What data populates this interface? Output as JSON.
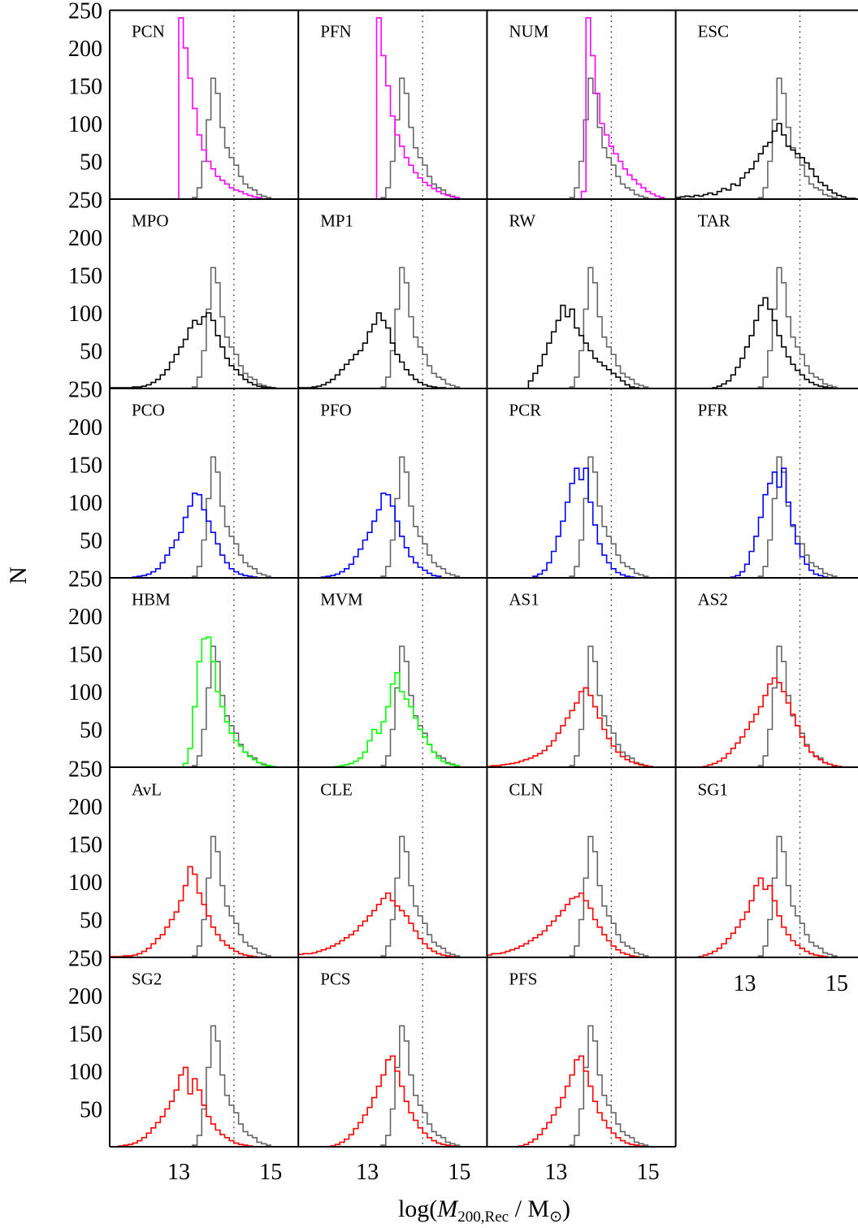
{
  "figure": {
    "ylabel": "N",
    "xlabel_parts": [
      "log(",
      "M",
      "200,Rec",
      " / M",
      "⊙",
      ")"
    ]
  },
  "colors": {
    "reference": "#666666",
    "pcn_group": "#ff00ff",
    "black_group": "#000000",
    "blue_group": "#0000ff",
    "green_group": "#00ff00",
    "red_group": "#ff0000",
    "frame": "#000000"
  },
  "chart_data": {
    "type": "histogram-grid",
    "ylim": [
      0,
      250
    ],
    "xlim": [
      11.5,
      15.6
    ],
    "yticks": [
      50,
      100,
      150,
      200,
      250
    ],
    "yticklabels": [
      "50",
      "100",
      "150",
      "200",
      "250"
    ],
    "xticks": [
      13,
      15
    ],
    "xticklabels": [
      "13",
      "15"
    ],
    "true_mass_marker": 14.2,
    "bin_width": 0.1,
    "reference": {
      "bin_start": 13.3,
      "values": [
        2,
        15,
        50,
        105,
        160,
        140,
        95,
        68,
        55,
        45,
        30,
        20,
        15,
        12,
        6,
        4,
        2
      ]
    },
    "panels": [
      {
        "label": "PCN",
        "color": "pcn_group",
        "bin_start": 13.0,
        "values": [
          240,
          200,
          160,
          120,
          85,
          65,
          50,
          40,
          30,
          25,
          20,
          15,
          12,
          10,
          7,
          5,
          3,
          2
        ]
      },
      {
        "label": "PFN",
        "color": "pcn_group",
        "bin_start": 13.2,
        "values": [
          240,
          190,
          150,
          110,
          85,
          70,
          55,
          45,
          35,
          28,
          22,
          18,
          14,
          10,
          7,
          5,
          3,
          2
        ]
      },
      {
        "label": "NUM",
        "color": "pcn_group",
        "bin_start": 13.55,
        "values": [
          10,
          240,
          190,
          140,
          100,
          85,
          70,
          60,
          50,
          40,
          32,
          26,
          20,
          15,
          10,
          7,
          4,
          2
        ]
      },
      {
        "label": "ESC",
        "color": "black_group",
        "bin_start": 11.5,
        "values": [
          2,
          3,
          4,
          3,
          5,
          4,
          6,
          8,
          6,
          10,
          14,
          12,
          20,
          18,
          28,
          35,
          40,
          50,
          60,
          70,
          75,
          90,
          100,
          85,
          70,
          65,
          60,
          55,
          48,
          40,
          30,
          22,
          18,
          12,
          8,
          5,
          3,
          1,
          1
        ]
      },
      {
        "label": "MPO",
        "color": "black_group",
        "bin_start": 11.5,
        "values": [
          1,
          1,
          1,
          1,
          1,
          2,
          2,
          3,
          5,
          8,
          12,
          18,
          25,
          35,
          45,
          55,
          65,
          80,
          90,
          85,
          95,
          100,
          90,
          70,
          55,
          40,
          30,
          25,
          18,
          12,
          8,
          5,
          3,
          2,
          1,
          1
        ]
      },
      {
        "label": "MP1",
        "color": "black_group",
        "bin_start": 11.5,
        "values": [
          1,
          1,
          1,
          2,
          3,
          5,
          8,
          12,
          18,
          25,
          32,
          38,
          45,
          50,
          60,
          75,
          85,
          100,
          90,
          80,
          60,
          45,
          35,
          25,
          18,
          12,
          8,
          5,
          3,
          2,
          1,
          1
        ]
      },
      {
        "label": "RW",
        "color": "black_group",
        "bin_start": 12.4,
        "values": [
          10,
          20,
          30,
          45,
          60,
          75,
          90,
          110,
          95,
          105,
          80,
          70,
          60,
          50,
          40,
          35,
          30,
          25,
          20,
          15,
          10,
          5,
          2,
          1
        ]
      },
      {
        "label": "TAR",
        "color": "black_group",
        "bin_start": 12.3,
        "values": [
          1,
          3,
          6,
          10,
          18,
          28,
          40,
          55,
          70,
          90,
          110,
          120,
          105,
          90,
          70,
          55,
          42,
          32,
          24,
          18,
          12,
          8,
          5,
          3,
          2,
          1
        ]
      },
      {
        "label": "PCO",
        "color": "blue_group",
        "bin_start": 12.0,
        "values": [
          1,
          2,
          3,
          5,
          8,
          12,
          20,
          30,
          40,
          50,
          60,
          80,
          95,
          112,
          110,
          90,
          75,
          60,
          45,
          30,
          20,
          12,
          8,
          5,
          3,
          2,
          1
        ]
      },
      {
        "label": "PFO",
        "color": "blue_group",
        "bin_start": 12.0,
        "values": [
          1,
          2,
          3,
          5,
          8,
          12,
          18,
          28,
          38,
          50,
          60,
          75,
          90,
          112,
          110,
          95,
          75,
          55,
          40,
          28,
          20,
          14,
          10,
          6,
          3,
          2
        ]
      },
      {
        "label": "PCR",
        "color": "blue_group",
        "bin_start": 12.5,
        "values": [
          2,
          5,
          10,
          20,
          35,
          55,
          75,
          100,
          125,
          145,
          130,
          145,
          100,
          70,
          45,
          30,
          20,
          12,
          7,
          4,
          2,
          1
        ]
      },
      {
        "label": "PFR",
        "color": "blue_group",
        "bin_start": 12.7,
        "values": [
          1,
          3,
          8,
          18,
          35,
          55,
          80,
          110,
          125,
          140,
          120,
          145,
          100,
          70,
          45,
          28,
          18,
          10,
          5,
          3,
          1
        ]
      },
      {
        "label": "HBM",
        "color": "green_group",
        "bin_start": 13.1,
        "values": [
          5,
          25,
          80,
          140,
          170,
          172,
          140,
          100,
          80,
          60,
          45,
          35,
          28,
          20,
          14,
          10,
          6,
          3,
          2,
          1
        ]
      },
      {
        "label": "MVM",
        "color": "green_group",
        "bin_start": 12.3,
        "values": [
          1,
          2,
          3,
          5,
          8,
          12,
          20,
          35,
          50,
          45,
          60,
          80,
          110,
          125,
          100,
          90,
          80,
          65,
          50,
          40,
          30,
          20,
          12,
          8,
          5,
          3,
          2
        ]
      },
      {
        "label": "AS1",
        "color": "red_group",
        "bin_start": 11.5,
        "values": [
          1,
          2,
          2,
          3,
          4,
          5,
          6,
          8,
          10,
          12,
          15,
          18,
          22,
          28,
          35,
          45,
          55,
          65,
          75,
          85,
          100,
          105,
          95,
          80,
          65,
          50,
          38,
          28,
          20,
          14,
          10,
          7,
          5,
          3,
          2,
          1
        ]
      },
      {
        "label": "AS2",
        "color": "red_group",
        "bin_start": 12.1,
        "values": [
          1,
          3,
          5,
          8,
          12,
          18,
          25,
          32,
          40,
          50,
          60,
          70,
          80,
          95,
          110,
          118,
          112,
          100,
          85,
          70,
          55,
          40,
          28,
          20,
          14,
          10,
          6,
          4,
          2,
          1
        ]
      },
      {
        "label": "AvL",
        "color": "red_group",
        "bin_start": 11.5,
        "values": [
          1,
          1,
          1,
          2,
          2,
          3,
          5,
          8,
          12,
          18,
          25,
          30,
          40,
          50,
          60,
          75,
          95,
          120,
          110,
          85,
          70,
          55,
          40,
          30,
          22,
          16,
          12,
          8,
          5,
          3,
          2,
          1
        ]
      },
      {
        "label": "CLE",
        "color": "red_group",
        "bin_start": 11.5,
        "values": [
          4,
          5,
          5,
          6,
          8,
          10,
          12,
          15,
          18,
          22,
          26,
          30,
          35,
          42,
          48,
          55,
          62,
          70,
          78,
          85,
          75,
          68,
          62,
          55,
          45,
          35,
          25,
          18,
          12,
          8,
          5,
          3,
          2,
          1
        ]
      },
      {
        "label": "CLN",
        "color": "red_group",
        "bin_start": 11.5,
        "values": [
          3,
          5,
          5,
          6,
          8,
          10,
          12,
          15,
          18,
          22,
          26,
          30,
          35,
          42,
          48,
          55,
          62,
          70,
          78,
          80,
          85,
          75,
          65,
          50,
          40,
          30,
          22,
          15,
          10,
          6,
          4,
          2,
          1
        ]
      },
      {
        "label": "SG1",
        "color": "red_group",
        "bin_start": 12.0,
        "values": [
          1,
          3,
          5,
          8,
          12,
          18,
          25,
          32,
          40,
          50,
          60,
          75,
          95,
          105,
          90,
          95,
          75,
          55,
          40,
          30,
          22,
          16,
          12,
          8,
          5,
          3,
          2,
          1
        ]
      },
      {
        "label": "SG2",
        "color": "red_group",
        "bin_start": 11.7,
        "values": [
          1,
          2,
          3,
          5,
          8,
          12,
          18,
          25,
          32,
          40,
          50,
          60,
          75,
          95,
          105,
          70,
          90,
          75,
          55,
          40,
          30,
          22,
          16,
          12,
          8,
          5,
          3,
          2,
          1
        ]
      },
      {
        "label": "PCS",
        "color": "red_group",
        "bin_start": 12.2,
        "values": [
          1,
          3,
          6,
          10,
          16,
          24,
          32,
          42,
          52,
          65,
          80,
          95,
          115,
          120,
          100,
          80,
          60,
          45,
          35,
          25,
          18,
          12,
          8,
          5,
          3,
          2,
          1
        ]
      },
      {
        "label": "PFS",
        "color": "red_group",
        "bin_start": 12.2,
        "values": [
          1,
          3,
          6,
          10,
          16,
          24,
          32,
          42,
          52,
          65,
          80,
          95,
          115,
          120,
          100,
          80,
          60,
          45,
          35,
          25,
          18,
          12,
          8,
          5,
          3,
          2,
          1
        ]
      }
    ]
  }
}
